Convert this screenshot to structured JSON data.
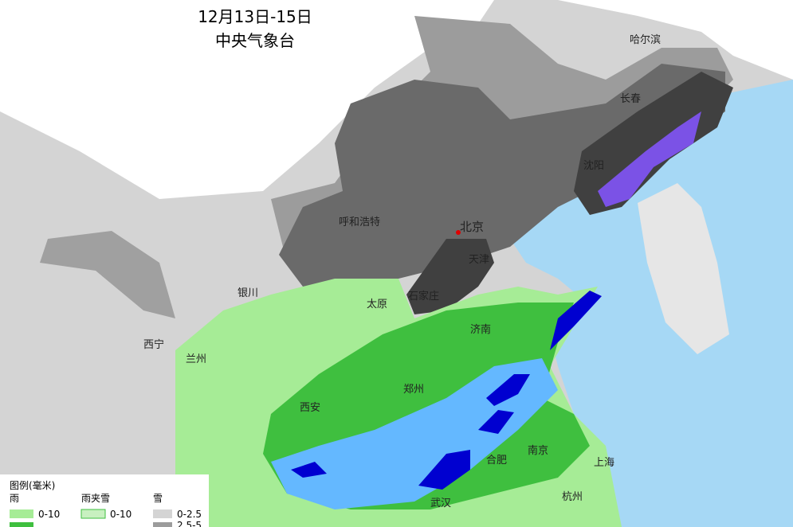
{
  "header": {
    "date": "12月13日-15日",
    "agency": "中央气象台"
  },
  "cities": [
    "哈尔滨",
    "长春",
    "沈阳",
    "北京",
    "天津",
    "呼和浩特",
    "银川",
    "太原",
    "石家庄",
    "济南",
    "西宁",
    "兰州",
    "西安",
    "郑州",
    "南京",
    "合肥",
    "上海",
    "武汉",
    "杭州"
  ],
  "legend": {
    "title": "图例(毫米)",
    "rain": "雨",
    "sleet": "雨夹雪",
    "snow": "雪",
    "rain_range": "0-10",
    "sleet_range": "0-10",
    "snow_ranges": [
      "0-2.5",
      "2.5-5"
    ]
  }
}
